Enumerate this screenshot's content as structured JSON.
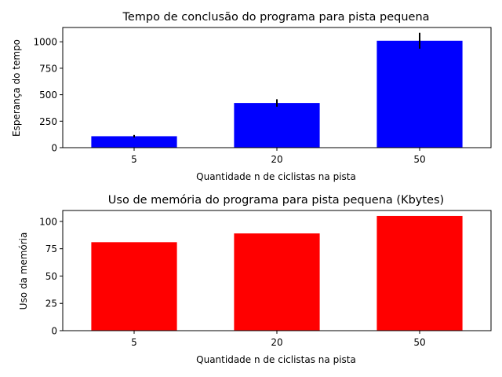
{
  "chart_data": [
    {
      "type": "bar",
      "title": "Tempo de conclusão do programa para pista pequena",
      "xlabel": "Quantidade n de ciclistas na pista",
      "ylabel": "Esperança do tempo",
      "categories": [
        "5",
        "20",
        "50"
      ],
      "values": [
        108,
        422,
        1010
      ],
      "errors": [
        12,
        35,
        75
      ],
      "ylim": [
        0,
        1135
      ],
      "yticks": [
        0,
        250,
        500,
        750,
        1000
      ],
      "color": "#0000ff",
      "grid": false
    },
    {
      "type": "bar",
      "title": "Uso de memória do programa para pista pequena (Kbytes)",
      "xlabel": "Quantidade n de ciclistas na pista",
      "ylabel": "Uso da memória",
      "categories": [
        "5",
        "20",
        "50"
      ],
      "values": [
        81,
        89,
        105
      ],
      "ylim": [
        0,
        110
      ],
      "yticks": [
        0,
        25,
        50,
        75,
        100
      ],
      "color": "#ff0000",
      "grid": false
    }
  ]
}
